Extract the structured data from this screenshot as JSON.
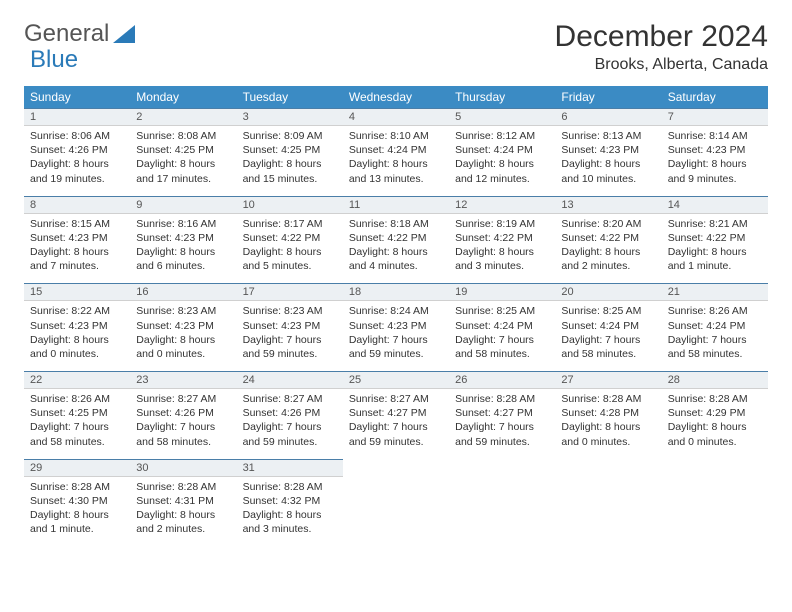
{
  "logo": {
    "word1": "General",
    "word2": "Blue"
  },
  "title": "December 2024",
  "location": "Brooks, Alberta, Canada",
  "colors": {
    "header_bg": "#3b8bc4",
    "header_text": "#ffffff",
    "daynum_bg": "#ecf0f3",
    "daynum_border_top": "#4a7ea8",
    "logo_blue": "#2a7ab8",
    "body_text": "#333333"
  },
  "weekdays": [
    "Sunday",
    "Monday",
    "Tuesday",
    "Wednesday",
    "Thursday",
    "Friday",
    "Saturday"
  ],
  "weeks": [
    [
      {
        "n": "1",
        "sr": "8:06 AM",
        "ss": "4:26 PM",
        "dl": "8 hours and 19 minutes."
      },
      {
        "n": "2",
        "sr": "8:08 AM",
        "ss": "4:25 PM",
        "dl": "8 hours and 17 minutes."
      },
      {
        "n": "3",
        "sr": "8:09 AM",
        "ss": "4:25 PM",
        "dl": "8 hours and 15 minutes."
      },
      {
        "n": "4",
        "sr": "8:10 AM",
        "ss": "4:24 PM",
        "dl": "8 hours and 13 minutes."
      },
      {
        "n": "5",
        "sr": "8:12 AM",
        "ss": "4:24 PM",
        "dl": "8 hours and 12 minutes."
      },
      {
        "n": "6",
        "sr": "8:13 AM",
        "ss": "4:23 PM",
        "dl": "8 hours and 10 minutes."
      },
      {
        "n": "7",
        "sr": "8:14 AM",
        "ss": "4:23 PM",
        "dl": "8 hours and 9 minutes."
      }
    ],
    [
      {
        "n": "8",
        "sr": "8:15 AM",
        "ss": "4:23 PM",
        "dl": "8 hours and 7 minutes."
      },
      {
        "n": "9",
        "sr": "8:16 AM",
        "ss": "4:23 PM",
        "dl": "8 hours and 6 minutes."
      },
      {
        "n": "10",
        "sr": "8:17 AM",
        "ss": "4:22 PM",
        "dl": "8 hours and 5 minutes."
      },
      {
        "n": "11",
        "sr": "8:18 AM",
        "ss": "4:22 PM",
        "dl": "8 hours and 4 minutes."
      },
      {
        "n": "12",
        "sr": "8:19 AM",
        "ss": "4:22 PM",
        "dl": "8 hours and 3 minutes."
      },
      {
        "n": "13",
        "sr": "8:20 AM",
        "ss": "4:22 PM",
        "dl": "8 hours and 2 minutes."
      },
      {
        "n": "14",
        "sr": "8:21 AM",
        "ss": "4:22 PM",
        "dl": "8 hours and 1 minute."
      }
    ],
    [
      {
        "n": "15",
        "sr": "8:22 AM",
        "ss": "4:23 PM",
        "dl": "8 hours and 0 minutes."
      },
      {
        "n": "16",
        "sr": "8:23 AM",
        "ss": "4:23 PM",
        "dl": "8 hours and 0 minutes."
      },
      {
        "n": "17",
        "sr": "8:23 AM",
        "ss": "4:23 PM",
        "dl": "7 hours and 59 minutes."
      },
      {
        "n": "18",
        "sr": "8:24 AM",
        "ss": "4:23 PM",
        "dl": "7 hours and 59 minutes."
      },
      {
        "n": "19",
        "sr": "8:25 AM",
        "ss": "4:24 PM",
        "dl": "7 hours and 58 minutes."
      },
      {
        "n": "20",
        "sr": "8:25 AM",
        "ss": "4:24 PM",
        "dl": "7 hours and 58 minutes."
      },
      {
        "n": "21",
        "sr": "8:26 AM",
        "ss": "4:24 PM",
        "dl": "7 hours and 58 minutes."
      }
    ],
    [
      {
        "n": "22",
        "sr": "8:26 AM",
        "ss": "4:25 PM",
        "dl": "7 hours and 58 minutes."
      },
      {
        "n": "23",
        "sr": "8:27 AM",
        "ss": "4:26 PM",
        "dl": "7 hours and 58 minutes."
      },
      {
        "n": "24",
        "sr": "8:27 AM",
        "ss": "4:26 PM",
        "dl": "7 hours and 59 minutes."
      },
      {
        "n": "25",
        "sr": "8:27 AM",
        "ss": "4:27 PM",
        "dl": "7 hours and 59 minutes."
      },
      {
        "n": "26",
        "sr": "8:28 AM",
        "ss": "4:27 PM",
        "dl": "7 hours and 59 minutes."
      },
      {
        "n": "27",
        "sr": "8:28 AM",
        "ss": "4:28 PM",
        "dl": "8 hours and 0 minutes."
      },
      {
        "n": "28",
        "sr": "8:28 AM",
        "ss": "4:29 PM",
        "dl": "8 hours and 0 minutes."
      }
    ],
    [
      {
        "n": "29",
        "sr": "8:28 AM",
        "ss": "4:30 PM",
        "dl": "8 hours and 1 minute."
      },
      {
        "n": "30",
        "sr": "8:28 AM",
        "ss": "4:31 PM",
        "dl": "8 hours and 2 minutes."
      },
      {
        "n": "31",
        "sr": "8:28 AM",
        "ss": "4:32 PM",
        "dl": "8 hours and 3 minutes."
      },
      null,
      null,
      null,
      null
    ]
  ]
}
